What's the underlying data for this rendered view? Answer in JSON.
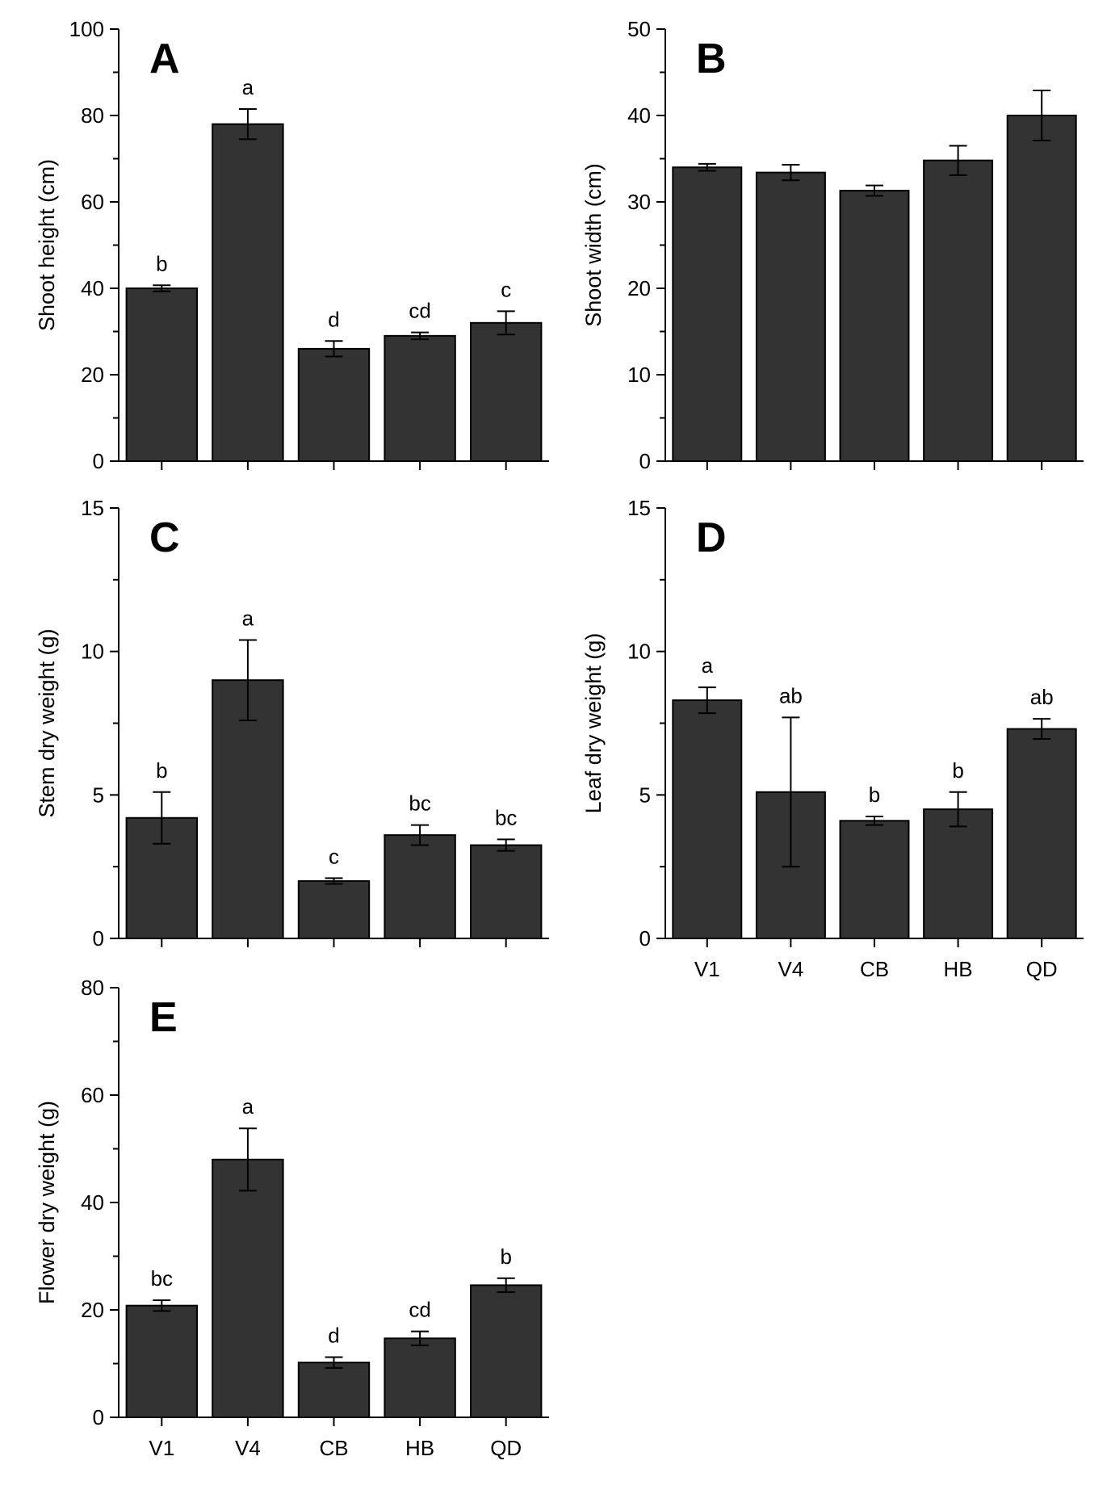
{
  "figure": {
    "bar_color": "#333333",
    "axis_color": "#000000"
  },
  "chart_data": [
    {
      "type": "bar",
      "panel": "A",
      "ylabel": "Shoot height (cm)",
      "ylim": [
        0,
        100
      ],
      "yticks": [
        0,
        20,
        40,
        60,
        80,
        100
      ],
      "show_xtick_labels": false,
      "categories": [
        "V1",
        "V4",
        "CB",
        "HB",
        "QD"
      ],
      "values": [
        40,
        78,
        26,
        29,
        32
      ],
      "errors": [
        0.7,
        3.5,
        1.8,
        0.8,
        2.7
      ],
      "letters": [
        "b",
        "a",
        "d",
        "cd",
        "c"
      ]
    },
    {
      "type": "bar",
      "panel": "B",
      "ylabel": "Shoot width (cm)",
      "ylim": [
        0,
        50
      ],
      "yticks": [
        0,
        10,
        20,
        30,
        40,
        50
      ],
      "show_xtick_labels": false,
      "categories": [
        "V1",
        "V4",
        "CB",
        "HB",
        "QD"
      ],
      "values": [
        34,
        33.4,
        31.3,
        34.8,
        40
      ],
      "errors": [
        0.4,
        0.9,
        0.6,
        1.7,
        2.9
      ],
      "letters": [
        "",
        "",
        "",
        "",
        ""
      ]
    },
    {
      "type": "bar",
      "panel": "C",
      "ylabel": "Stem dry weight (g)",
      "ylim": [
        0,
        15
      ],
      "yticks": [
        0,
        5,
        10,
        15
      ],
      "show_xtick_labels": false,
      "categories": [
        "V1",
        "V4",
        "CB",
        "HB",
        "QD"
      ],
      "values": [
        4.2,
        9,
        2,
        3.6,
        3.25
      ],
      "errors": [
        0.9,
        1.4,
        0.1,
        0.35,
        0.2
      ],
      "letters": [
        "b",
        "a",
        "c",
        "bc",
        "bc"
      ]
    },
    {
      "type": "bar",
      "panel": "D",
      "ylabel": "Leaf dry weight (g)",
      "ylim": [
        0,
        15
      ],
      "yticks": [
        0,
        5,
        10,
        15
      ],
      "show_xtick_labels": true,
      "categories": [
        "V1",
        "V4",
        "CB",
        "HB",
        "QD"
      ],
      "values": [
        8.3,
        5.1,
        4.1,
        4.5,
        7.3
      ],
      "errors": [
        0.45,
        2.6,
        0.15,
        0.6,
        0.35
      ],
      "letters": [
        "a",
        "ab",
        "b",
        "b",
        "ab"
      ]
    },
    {
      "type": "bar",
      "panel": "E",
      "ylabel": "Flower dry weight (g)",
      "ylim": [
        0,
        80
      ],
      "yticks": [
        0,
        20,
        40,
        60,
        80
      ],
      "show_xtick_labels": true,
      "categories": [
        "V1",
        "V4",
        "CB",
        "HB",
        "QD"
      ],
      "values": [
        20.8,
        48,
        10.2,
        14.7,
        24.6
      ],
      "errors": [
        1,
        5.8,
        1,
        1.3,
        1.3
      ],
      "letters": [
        "bc",
        "a",
        "d",
        "cd",
        "b"
      ]
    }
  ]
}
